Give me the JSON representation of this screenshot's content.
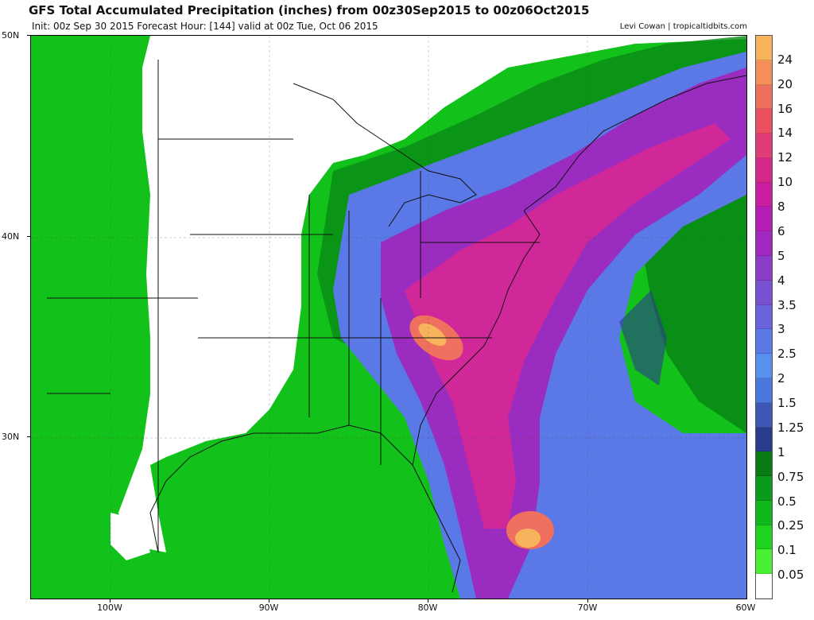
{
  "header": {
    "title": "GFS Total Accumulated Precipitation (inches) from 00z30Sep2015 to 00z06Oct2015",
    "subtitle": "Init: 00z Sep 30 2015   Forecast Hour: [144]   valid at 00z Tue, Oct 06 2015",
    "credit": "Levi Cowan | tropicaltidbits.com"
  },
  "axes": {
    "lat_labels": [
      "50N",
      "40N",
      "30N"
    ],
    "lon_labels": [
      "100W",
      "90W",
      "80W",
      "70W",
      "60W"
    ]
  },
  "colorbar": {
    "labels": [
      "24",
      "20",
      "16",
      "14",
      "12",
      "10",
      "8",
      "6",
      "5",
      "4",
      "3.5",
      "3",
      "2.5",
      "2",
      "1.5",
      "1.25",
      "1",
      "0.75",
      "0.5",
      "0.25",
      "0.1",
      "0.05"
    ],
    "colors": [
      "#f8b45c",
      "#f5905a",
      "#f07060",
      "#ea5060",
      "#e03c78",
      "#d4288c",
      "#c81ea0",
      "#b41eb4",
      "#a028be",
      "#8c3cc8",
      "#7850d2",
      "#6a64dc",
      "#5a78e6",
      "#5890f0",
      "#4a78dc",
      "#3c58b4",
      "#2a3c8c",
      "#0a7a14",
      "#0a9a1c",
      "#10b81c",
      "#1ed21e",
      "#4af034",
      "#ffffff"
    ]
  }
}
